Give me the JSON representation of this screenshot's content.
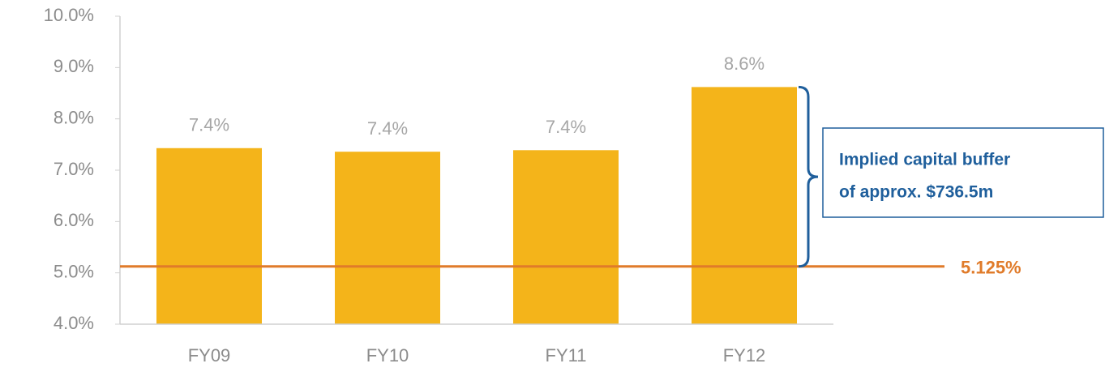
{
  "chart_data": {
    "type": "bar",
    "categories": [
      "FY09",
      "FY10",
      "FY11",
      "FY12"
    ],
    "values": [
      7.43,
      7.36,
      7.39,
      8.62
    ],
    "value_labels": [
      "7.4%",
      "7.4%",
      "7.4%",
      "8.6%"
    ],
    "color": "#f4b41a",
    "ylim": [
      4,
      10
    ],
    "yticks": [
      {
        "value": 4,
        "label": "4.0%"
      },
      {
        "value": 5,
        "label": "5.0%"
      },
      {
        "value": 6,
        "label": "6.0%"
      },
      {
        "value": 7,
        "label": "7.0%"
      },
      {
        "value": 8,
        "label": "8.0%"
      },
      {
        "value": 9,
        "label": "9.0%"
      },
      {
        "value": 10,
        "label": "10.0%"
      }
    ],
    "reference_line": {
      "value": 5.125,
      "label": "5.125%",
      "color": "#e07b2a"
    },
    "annotation": {
      "lines": [
        "Implied capital buffer",
        "of approx. $736.5m"
      ],
      "color": "#1f5f9c"
    }
  }
}
